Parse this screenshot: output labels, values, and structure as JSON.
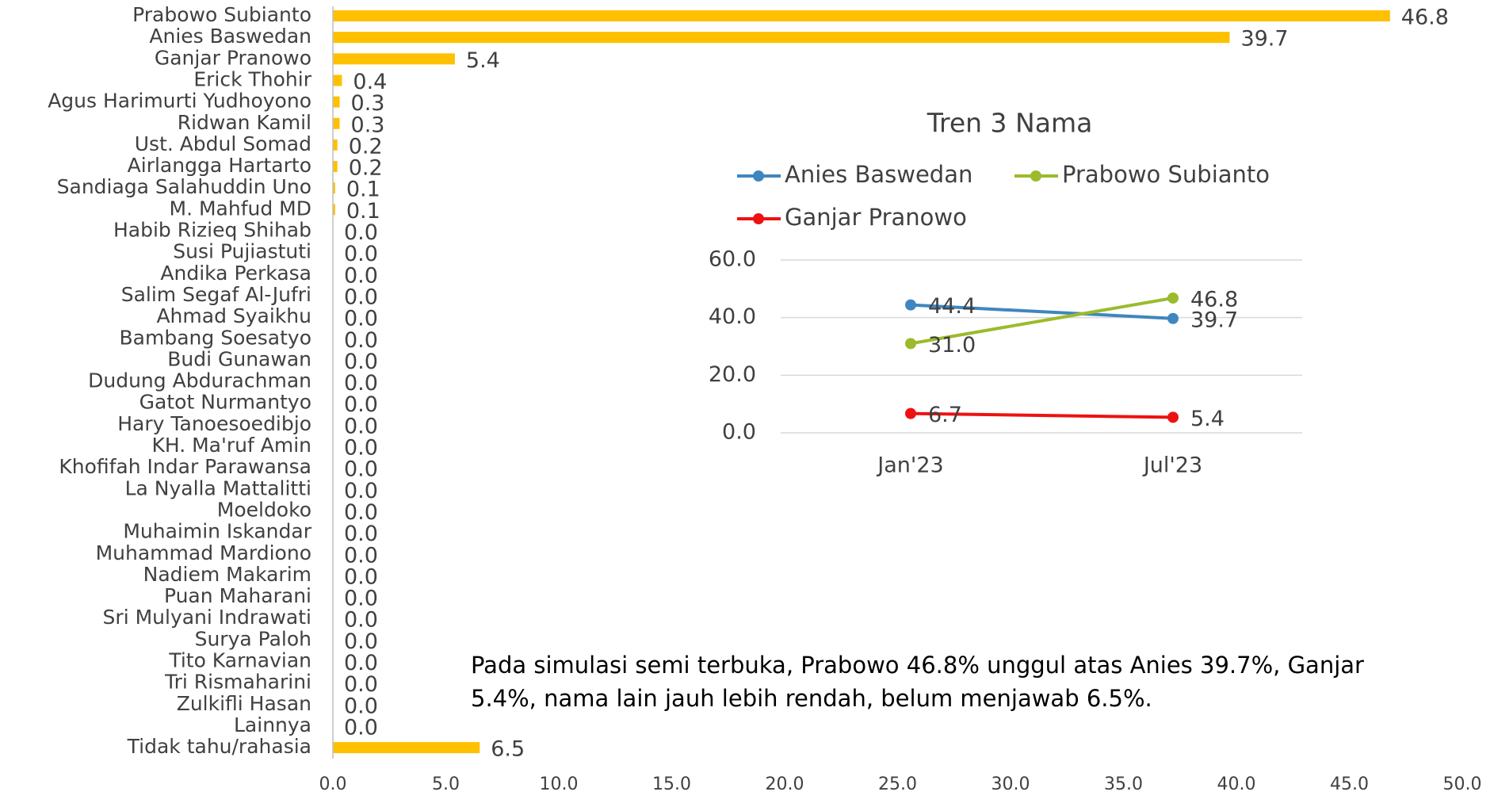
{
  "chart_data": [
    {
      "type": "hbar",
      "categories": [
        "Prabowo Subianto",
        "Anies Baswedan",
        "Ganjar Pranowo",
        "Erick Thohir",
        "Agus Harimurti Yudhoyono",
        "Ridwan Kamil",
        "Ust. Abdul Somad",
        "Airlangga Hartarto",
        "Sandiaga Salahuddin Uno",
        "M. Mahfud MD",
        "Habib Rizieq Shihab",
        "Susi Pujiastuti",
        "Andika Perkasa",
        "Salim Segaf Al-Jufri",
        "Ahmad Syaikhu",
        "Bambang Soesatyo",
        "Budi Gunawan",
        "Dudung Abdurachman",
        "Gatot Nurmantyo",
        "Hary Tanoesoedibjo",
        "KH. Ma'ruf Amin",
        "Khofifah Indar Parawansa",
        "La Nyalla Mattalitti",
        "Moeldoko",
        "Muhaimin Iskandar",
        "Muhammad Mardiono",
        "Nadiem Makarim",
        "Puan Maharani",
        "Sri Mulyani Indrawati",
        "Surya Paloh",
        "Tito Karnavian",
        "Tri Rismaharini",
        "Zulkifli Hasan",
        "Lainnya",
        "Tidak tahu/rahasia"
      ],
      "values": [
        46.8,
        39.7,
        5.4,
        0.4,
        0.3,
        0.3,
        0.2,
        0.2,
        0.1,
        0.1,
        0,
        0,
        0,
        0,
        0,
        0,
        0,
        0,
        0,
        0,
        0,
        0,
        0,
        0,
        0,
        0,
        0,
        0,
        0,
        0,
        0,
        0,
        0,
        0,
        6.5
      ],
      "value_labels": [
        "46.8",
        "39.7",
        "5.4",
        "0.4",
        "0.3",
        "0.3",
        "0.2",
        "0.2",
        "0.1",
        "0.1",
        "0.0",
        "0.0",
        "0.0",
        "0.0",
        "0.0",
        "0.0",
        "0.0",
        "0.0",
        "0.0",
        "0.0",
        "0.0",
        "0.0",
        "0.0",
        "0.0",
        "0.0",
        "0.0",
        "0.0",
        "0.0",
        "0.0",
        "0.0",
        "0.0",
        "0.0",
        "0.0",
        "0.0",
        "6.5"
      ],
      "color": "#ffc000",
      "xlim": [
        0,
        50
      ],
      "xticks": [
        {
          "value": 0,
          "label": "0.0"
        },
        {
          "value": 5,
          "label": "5.0"
        },
        {
          "value": 10,
          "label": "10.0"
        },
        {
          "value": 15,
          "label": "15.0"
        },
        {
          "value": 20,
          "label": "20.0"
        },
        {
          "value": 25,
          "label": "25.0"
        },
        {
          "value": 30,
          "label": "30.0"
        },
        {
          "value": 35,
          "label": "35.0"
        },
        {
          "value": 40,
          "label": "40.0"
        },
        {
          "value": 45,
          "label": "45.0"
        },
        {
          "value": 50,
          "label": "50.0"
        }
      ],
      "annotation": "Pada simulasi semi terbuka, Prabowo 46.8% unggul atas Anies 39.7%, Ganjar 5.4%, nama lain jauh lebih rendah, belum menjawab 6.5%."
    },
    {
      "type": "line",
      "title": "Tren 3 Nama",
      "categories": [
        "Jan'23",
        "Jul'23"
      ],
      "series": [
        {
          "name": "Anies Baswedan",
          "color": "#3f86c0",
          "values": [
            44.4,
            39.7
          ],
          "value_labels": [
            "44.4",
            "39.7"
          ]
        },
        {
          "name": "Prabowo Subianto",
          "color": "#9bbb2c",
          "values": [
            31,
            46.8
          ],
          "value_labels": [
            "31.0",
            "46.8"
          ]
        },
        {
          "name": "Ganjar Pranowo",
          "color": "#ee1111",
          "values": [
            6.7,
            5.4
          ],
          "value_labels": [
            "6.7",
            "5.4"
          ]
        }
      ],
      "ylim": [
        0,
        60
      ],
      "yticks": [
        {
          "value": 0,
          "label": "0.0"
        },
        {
          "value": 20,
          "label": "20.0"
        },
        {
          "value": 40,
          "label": "40.0"
        },
        {
          "value": 60,
          "label": "60.0"
        }
      ],
      "grid": true
    }
  ]
}
